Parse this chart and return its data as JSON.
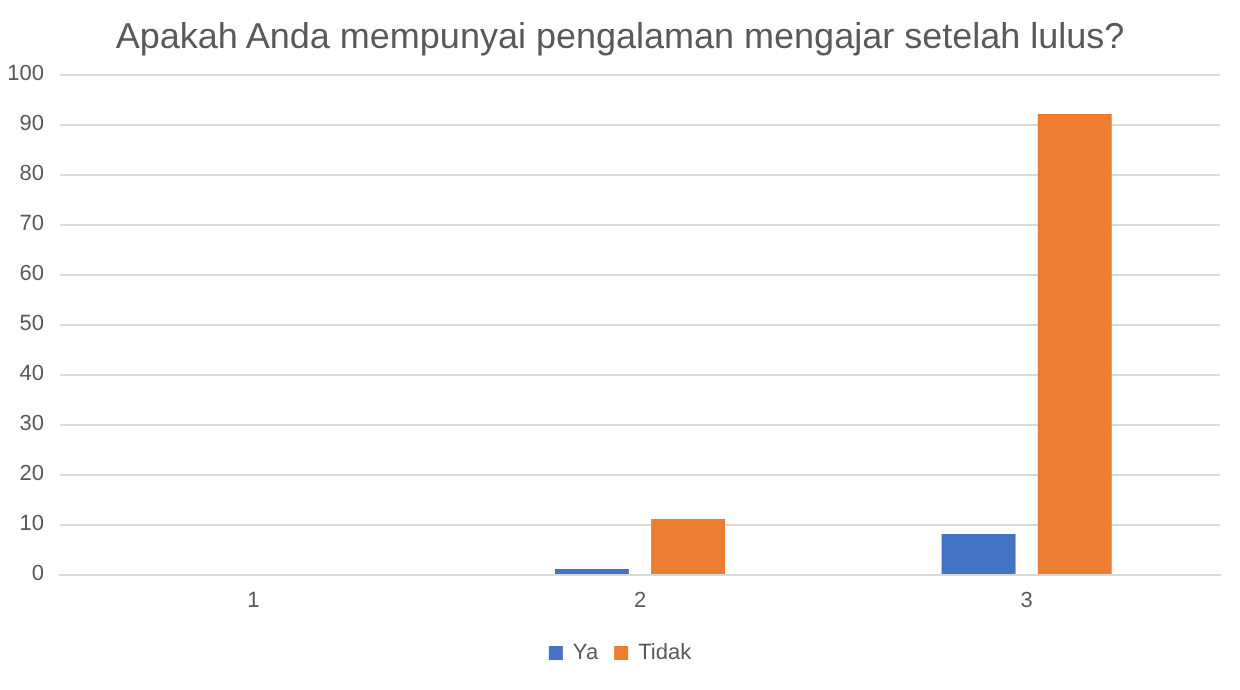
{
  "chart_data": {
    "type": "bar",
    "title": "Apakah Anda mempunyai pengalaman mengajar setelah lulus?",
    "categories": [
      "1",
      "2",
      "3"
    ],
    "series": [
      {
        "name": "Ya",
        "color": "#4472c4",
        "values": [
          0,
          1,
          8
        ]
      },
      {
        "name": "Tidak",
        "color": "#ed7d31",
        "values": [
          0,
          11,
          92
        ]
      }
    ],
    "ylim": [
      0,
      100
    ],
    "yticks": [
      0,
      10,
      20,
      30,
      40,
      50,
      60,
      70,
      80,
      90,
      100
    ],
    "grid": "y",
    "legend": "bottom"
  }
}
